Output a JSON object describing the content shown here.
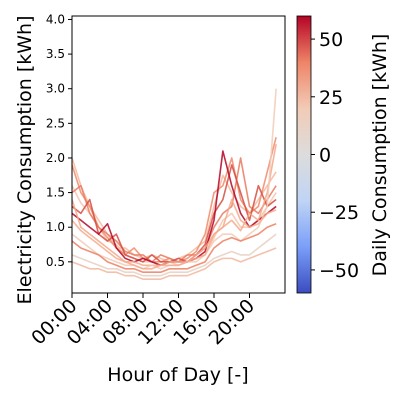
{
  "chart_data": {
    "type": "line",
    "xlabel": "Hour of Day [-]",
    "ylabel": "Electricity Consumption [kWh]",
    "x_ticks": [
      "00:00",
      "04:00",
      "08:00",
      "12:00",
      "16:00",
      "20:00"
    ],
    "x_tick_values": [
      0,
      4,
      8,
      12,
      16,
      20
    ],
    "xlim": [
      0,
      24
    ],
    "y_ticks": [
      "0.5",
      "1.0",
      "1.5",
      "2.0",
      "2.5",
      "3.0",
      "3.5",
      "4.0"
    ],
    "y_tick_values": [
      0.5,
      1.0,
      1.5,
      2.0,
      2.5,
      3.0,
      3.5,
      4.0
    ],
    "ylim": [
      0.05,
      4.05
    ],
    "grid": false,
    "colorbar": {
      "label": "Daily Consumption [kWh]",
      "ticks": [
        "50",
        "25",
        "0",
        "−25",
        "−50"
      ],
      "tick_values": [
        50,
        25,
        0,
        -25,
        -50
      ],
      "range": [
        -60,
        60
      ],
      "colormap": "coolwarm",
      "colors": [
        "#3b4cc0",
        "#7b9ff9",
        "#c0d4f5",
        "#dddcdc",
        "#f2cbb7",
        "#ee8468",
        "#b40426"
      ]
    },
    "series": [
      {
        "color": "#f4c5ad",
        "values": [
          1.6,
          1.35,
          1.2,
          1.0,
          0.8,
          0.75,
          0.6,
          0.55,
          0.5,
          0.5,
          0.45,
          0.5,
          0.45,
          0.5,
          0.55,
          0.6,
          0.85,
          1.1,
          1.2,
          1.0,
          1.0,
          1.1,
          1.3,
          1.5
        ]
      },
      {
        "color": "#f7b89c",
        "values": [
          2.0,
          1.6,
          1.3,
          1.1,
          0.9,
          0.7,
          0.7,
          0.6,
          0.55,
          0.6,
          0.55,
          0.5,
          0.55,
          0.6,
          0.7,
          0.8,
          1.3,
          1.75,
          1.5,
          1.3,
          1.2,
          1.4,
          1.6,
          1.8
        ]
      },
      {
        "color": "#f08a6c",
        "values": [
          1.9,
          1.5,
          1.3,
          1.0,
          0.85,
          0.7,
          0.6,
          0.7,
          0.55,
          0.5,
          0.5,
          0.55,
          0.5,
          0.55,
          0.65,
          0.9,
          1.5,
          1.6,
          2.0,
          1.4,
          1.2,
          1.3,
          1.8,
          2.3
        ]
      },
      {
        "color": "#e97a5f",
        "values": [
          1.5,
          1.6,
          1.2,
          1.0,
          0.9,
          0.8,
          0.65,
          0.6,
          0.6,
          0.5,
          0.6,
          0.55,
          0.5,
          0.6,
          0.6,
          0.7,
          1.0,
          1.2,
          1.3,
          2.0,
          1.3,
          1.2,
          1.4,
          1.6
        ]
      },
      {
        "color": "#d44e41",
        "values": [
          1.3,
          1.2,
          1.4,
          0.9,
          0.8,
          0.9,
          0.6,
          0.55,
          0.5,
          0.6,
          0.5,
          0.5,
          0.55,
          0.5,
          0.6,
          0.75,
          1.2,
          1.4,
          1.9,
          1.5,
          1.1,
          1.6,
          1.3,
          1.4
        ]
      },
      {
        "color": "#b40426",
        "values": [
          1.2,
          1.1,
          1.0,
          0.9,
          1.05,
          0.7,
          0.55,
          0.5,
          0.55,
          0.5,
          0.45,
          0.5,
          0.5,
          0.5,
          0.55,
          0.65,
          1.1,
          2.1,
          1.6,
          1.2,
          1.0,
          1.1,
          1.2,
          1.3
        ]
      },
      {
        "color": "#f5a889",
        "values": [
          1.4,
          1.0,
          0.9,
          0.8,
          0.7,
          0.6,
          0.5,
          0.5,
          0.45,
          0.45,
          0.45,
          0.5,
          0.5,
          0.5,
          0.6,
          0.7,
          0.9,
          1.0,
          1.1,
          0.95,
          1.2,
          1.1,
          1.5,
          2.2
        ]
      },
      {
        "color": "#f2cbb7",
        "values": [
          0.9,
          0.8,
          0.7,
          0.6,
          0.55,
          0.5,
          0.45,
          0.45,
          0.4,
          0.45,
          0.4,
          0.45,
          0.45,
          0.5,
          0.5,
          0.6,
          0.8,
          0.9,
          0.9,
          0.8,
          0.9,
          1.0,
          1.3,
          3.0
        ]
      },
      {
        "color": "#e6d0c3",
        "values": [
          0.6,
          0.55,
          0.5,
          0.45,
          0.4,
          0.4,
          0.35,
          0.35,
          0.3,
          0.3,
          0.3,
          0.35,
          0.35,
          0.35,
          0.4,
          0.45,
          0.55,
          0.6,
          0.65,
          0.6,
          0.6,
          0.7,
          0.8,
          0.9
        ]
      },
      {
        "color": "#f7a98b",
        "values": [
          1.1,
          0.95,
          0.85,
          0.75,
          0.65,
          0.55,
          0.5,
          0.45,
          0.4,
          0.4,
          0.45,
          0.45,
          0.45,
          0.5,
          0.55,
          0.6,
          0.9,
          1.0,
          1.4,
          1.1,
          1.0,
          1.05,
          1.2,
          1.25
        ]
      },
      {
        "color": "#ec7f63",
        "values": [
          0.8,
          0.7,
          0.65,
          0.6,
          0.5,
          0.45,
          0.4,
          0.4,
          0.35,
          0.35,
          0.35,
          0.4,
          0.4,
          0.4,
          0.45,
          0.5,
          0.7,
          0.8,
          0.85,
          0.8,
          0.85,
          0.9,
          1.0,
          1.05
        ]
      },
      {
        "color": "#f1b79d",
        "values": [
          0.5,
          0.45,
          0.4,
          0.4,
          0.35,
          0.35,
          0.3,
          0.3,
          0.25,
          0.25,
          0.25,
          0.3,
          0.3,
          0.3,
          0.35,
          0.4,
          0.5,
          0.55,
          0.55,
          0.5,
          0.55,
          0.6,
          0.65,
          0.7
        ]
      }
    ]
  }
}
